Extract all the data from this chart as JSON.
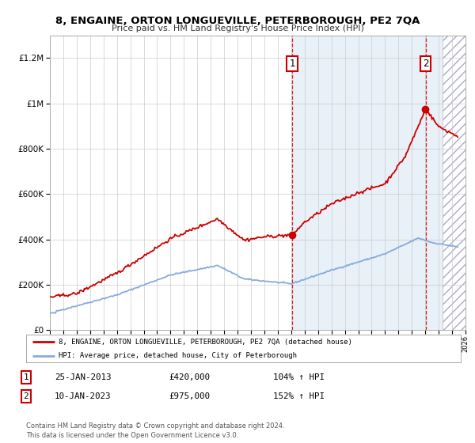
{
  "title": "8, ENGAINE, ORTON LONGUEVILLE, PETERBOROUGH, PE2 7QA",
  "subtitle": "Price paid vs. HM Land Registry's House Price Index (HPI)",
  "legend_line1": "8, ENGAINE, ORTON LONGUEVILLE, PETERBOROUGH, PE2 7QA (detached house)",
  "legend_line2": "HPI: Average price, detached house, City of Peterborough",
  "annotation1_label": "1",
  "annotation1_date": "25-JAN-2013",
  "annotation1_price": "£420,000",
  "annotation1_hpi": "104% ↑ HPI",
  "annotation2_label": "2",
  "annotation2_date": "10-JAN-2023",
  "annotation2_price": "£975,000",
  "annotation2_hpi": "152% ↑ HPI",
  "footer": "Contains HM Land Registry data © Crown copyright and database right 2024.\nThis data is licensed under the Open Government Licence v3.0.",
  "house_color": "#cc0000",
  "hpi_color": "#88aadd",
  "bg_color": "#ffffff",
  "highlight_bg": "#e8f0f8",
  "grid_color": "#cccccc",
  "ylim_max": 1300000,
  "sale1_year": 2013.07,
  "sale1_value": 420000,
  "sale2_year": 2023.03,
  "sale2_value": 975000,
  "xstart": 1995,
  "xend": 2026
}
